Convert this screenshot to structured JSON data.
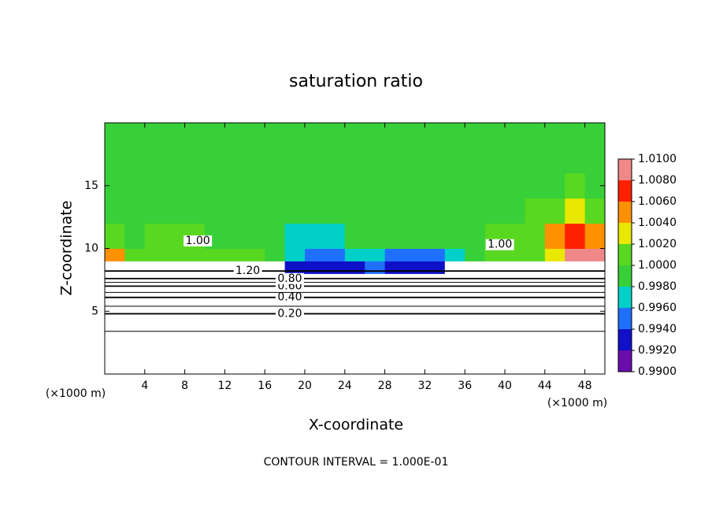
{
  "chart_data": {
    "type": "contour",
    "title": "saturation ratio",
    "x_label": "X-coordinate",
    "y_label": "Z-coordinate",
    "x_unit": "(×1000 m)",
    "x_unit_right": "(×1000 m)",
    "footer": "CONTOUR INTERVAL = 1.000E-01",
    "xlim": [
      0,
      50
    ],
    "ylim": [
      0,
      20
    ],
    "xticks": [
      4,
      8,
      12,
      16,
      20,
      24,
      28,
      32,
      36,
      40,
      44,
      48
    ],
    "yticks": [
      5,
      10,
      15
    ],
    "x_edges": [
      0,
      2,
      4,
      6,
      8,
      10,
      12,
      14,
      16,
      18,
      20,
      22,
      24,
      26,
      28,
      30,
      32,
      34,
      36,
      38,
      40,
      42,
      44,
      46,
      48,
      50
    ],
    "z_edges": [
      0,
      2,
      4,
      5,
      6,
      7,
      8,
      9,
      10,
      12,
      14,
      16,
      20
    ],
    "values": [
      [
        0.1,
        0.1,
        0.1,
        0.1,
        0.1,
        0.1,
        0.1,
        0.1,
        0.1,
        0.1,
        0.1,
        0.1,
        0.1,
        0.1,
        0.1,
        0.1,
        0.1,
        0.1,
        0.1,
        0.1,
        0.1,
        0.1,
        0.1,
        0.1,
        0.1
      ],
      [
        0.15,
        0.15,
        0.15,
        0.15,
        0.15,
        0.15,
        0.15,
        0.15,
        0.15,
        0.15,
        0.15,
        0.15,
        0.15,
        0.15,
        0.15,
        0.15,
        0.15,
        0.15,
        0.15,
        0.15,
        0.15,
        0.15,
        0.15,
        0.15,
        0.15
      ],
      [
        0.25,
        0.25,
        0.25,
        0.25,
        0.25,
        0.25,
        0.25,
        0.25,
        0.25,
        0.25,
        0.25,
        0.25,
        0.25,
        0.25,
        0.25,
        0.25,
        0.25,
        0.25,
        0.25,
        0.25,
        0.25,
        0.25,
        0.25,
        0.25,
        0.25
      ],
      [
        0.35,
        0.35,
        0.35,
        0.35,
        0.35,
        0.35,
        0.35,
        0.35,
        0.35,
        0.35,
        0.35,
        0.35,
        0.35,
        0.35,
        0.35,
        0.35,
        0.35,
        0.35,
        0.35,
        0.35,
        0.35,
        0.35,
        0.35,
        0.35,
        0.35
      ],
      [
        0.5,
        0.5,
        0.5,
        0.5,
        0.5,
        0.5,
        0.5,
        0.5,
        0.5,
        0.5,
        0.5,
        0.5,
        0.5,
        0.5,
        0.5,
        0.5,
        0.5,
        0.5,
        0.5,
        0.5,
        0.5,
        0.5,
        0.5,
        0.5,
        0.5
      ],
      [
        0.8,
        0.8,
        0.8,
        0.8,
        0.8,
        0.8,
        0.8,
        0.8,
        0.8,
        0.8,
        0.8,
        0.8,
        0.8,
        0.8,
        0.8,
        0.8,
        0.8,
        0.8,
        0.8,
        0.8,
        0.8,
        0.8,
        0.8,
        0.8,
        0.8
      ],
      [
        1.2,
        1.2,
        1.2,
        1.2,
        1.2,
        1.2,
        1.2,
        1.2,
        1.2,
        0.993,
        0.992,
        0.992,
        0.993,
        0.994,
        0.993,
        0.992,
        0.993,
        1.2,
        1.2,
        1.2,
        1.2,
        1.2,
        1.2,
        1.2,
        1.2
      ],
      [
        1.004,
        1.0005,
        1.001,
        1.001,
        1.001,
        1.0005,
        1.001,
        1.0,
        0.998,
        0.996,
        0.995,
        0.995,
        0.996,
        0.996,
        0.995,
        0.995,
        0.995,
        0.997,
        0.999,
        1.0,
        1.0005,
        1.001,
        1.003,
        1.008,
        1.009
      ],
      [
        1.001,
        0.9995,
        1.0005,
        1.0005,
        1.001,
        0.9995,
        0.9995,
        0.999,
        0.998,
        0.997,
        0.997,
        0.9975,
        0.998,
        0.9985,
        0.9985,
        0.999,
        0.999,
        0.9995,
        0.9995,
        1.0,
        1.001,
        1.001,
        1.004,
        1.006,
        1.004
      ],
      [
        0.9995,
        0.9995,
        0.9995,
        0.9995,
        0.9995,
        0.9995,
        0.9995,
        0.999,
        0.9985,
        0.9985,
        0.9985,
        0.9985,
        0.999,
        0.999,
        0.999,
        0.9995,
        0.9995,
        0.9995,
        0.9995,
        0.9995,
        0.9995,
        1.0,
        1.001,
        1.003,
        1.001
      ],
      [
        0.9995,
        0.9995,
        0.9995,
        0.9995,
        0.9995,
        0.9995,
        0.9995,
        0.9995,
        0.9995,
        0.9995,
        0.9995,
        0.9995,
        0.9995,
        0.9995,
        0.9995,
        0.9995,
        0.9995,
        0.9995,
        0.9995,
        0.9995,
        0.9995,
        0.9995,
        0.9995,
        1.001,
        0.9995
      ],
      [
        0.9995,
        0.9995,
        0.9995,
        0.9995,
        0.9995,
        0.9995,
        0.9995,
        0.9995,
        0.9995,
        0.9995,
        0.9995,
        0.9995,
        0.9995,
        0.9995,
        0.9995,
        0.9995,
        0.9995,
        0.9995,
        0.9995,
        0.9995,
        0.9995,
        0.9995,
        0.9995,
        0.9995,
        0.9995
      ]
    ],
    "clim": [
      0.99,
      1.01
    ],
    "colors": [
      "#6a0dad",
      "#1010c8",
      "#2070ff",
      "#00d0c8",
      "#38d038",
      "#58d820",
      "#e8e800",
      "#ff9000",
      "#ff2000",
      "#f08888"
    ],
    "colorbar_ticks": [
      {
        "value": 0.99,
        "label": "0.9900"
      },
      {
        "value": 0.992,
        "label": "0.9920"
      },
      {
        "value": 0.994,
        "label": "0.9940"
      },
      {
        "value": 0.996,
        "label": "0.9960"
      },
      {
        "value": 0.998,
        "label": "0.9980"
      },
      {
        "value": 1.0,
        "label": "1.0000"
      },
      {
        "value": 1.002,
        "label": "1.0020"
      },
      {
        "value": 1.004,
        "label": "1.0040"
      },
      {
        "value": 1.006,
        "label": "1.0060"
      },
      {
        "value": 1.008,
        "label": "1.0080"
      },
      {
        "value": 1.01,
        "label": "1.0100"
      }
    ],
    "contours": [
      {
        "level": 0.1,
        "z": 3.4
      },
      {
        "level": 0.2,
        "z": 4.8,
        "label": "0.20",
        "label_x": 18.5
      },
      {
        "level": 0.3,
        "z": 5.4
      },
      {
        "level": 0.4,
        "z": 6.1,
        "label": "0.40",
        "label_x": 18.5
      },
      {
        "level": 0.5,
        "z": 6.5
      },
      {
        "level": 0.6,
        "z": 7.0,
        "label": "0.60",
        "label_x": 18.5
      },
      {
        "level": 0.7,
        "z": 7.3
      },
      {
        "level": 0.8,
        "z": 7.6,
        "label": "0.80",
        "label_x": 18.5
      },
      {
        "level": 1.2,
        "z": 8.2,
        "label": "1.20",
        "label_x": 14.3
      },
      {
        "level": 1.0,
        "z": 10.6,
        "label": "1.00",
        "label_x": 9.3
      },
      {
        "level": 1.0,
        "z": 10.3,
        "label": "1.00",
        "label_x": 39.5
      }
    ]
  }
}
